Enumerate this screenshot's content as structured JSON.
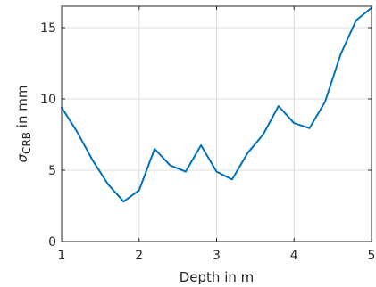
{
  "chart_data": {
    "type": "line",
    "title": "",
    "xlabel": "Depth in m",
    "ylabel": "σ_CRB in mm",
    "ylabel_base": "σ",
    "ylabel_sub": "CRB",
    "ylabel_rest": " in mm",
    "xlim": [
      1,
      5
    ],
    "ylim": [
      0,
      16.5
    ],
    "xticks": [
      1,
      2,
      3,
      4,
      5
    ],
    "yticks": [
      0,
      5,
      10,
      15
    ],
    "grid": true,
    "line_color": "#0072BD",
    "series": [
      {
        "x": [
          1.0,
          1.2,
          1.4,
          1.6,
          1.8,
          2.0,
          2.2,
          2.4,
          2.6,
          2.8,
          3.0,
          3.2,
          3.4,
          3.6,
          3.8,
          4.0,
          4.2,
          4.4,
          4.6,
          4.8,
          5.0
        ],
        "values": [
          9.4,
          7.7,
          5.7,
          4.0,
          2.8,
          3.6,
          6.5,
          5.35,
          4.9,
          6.75,
          4.9,
          4.35,
          6.2,
          7.5,
          9.5,
          8.3,
          7.95,
          9.8,
          13.1,
          15.5,
          16.4
        ]
      }
    ]
  }
}
